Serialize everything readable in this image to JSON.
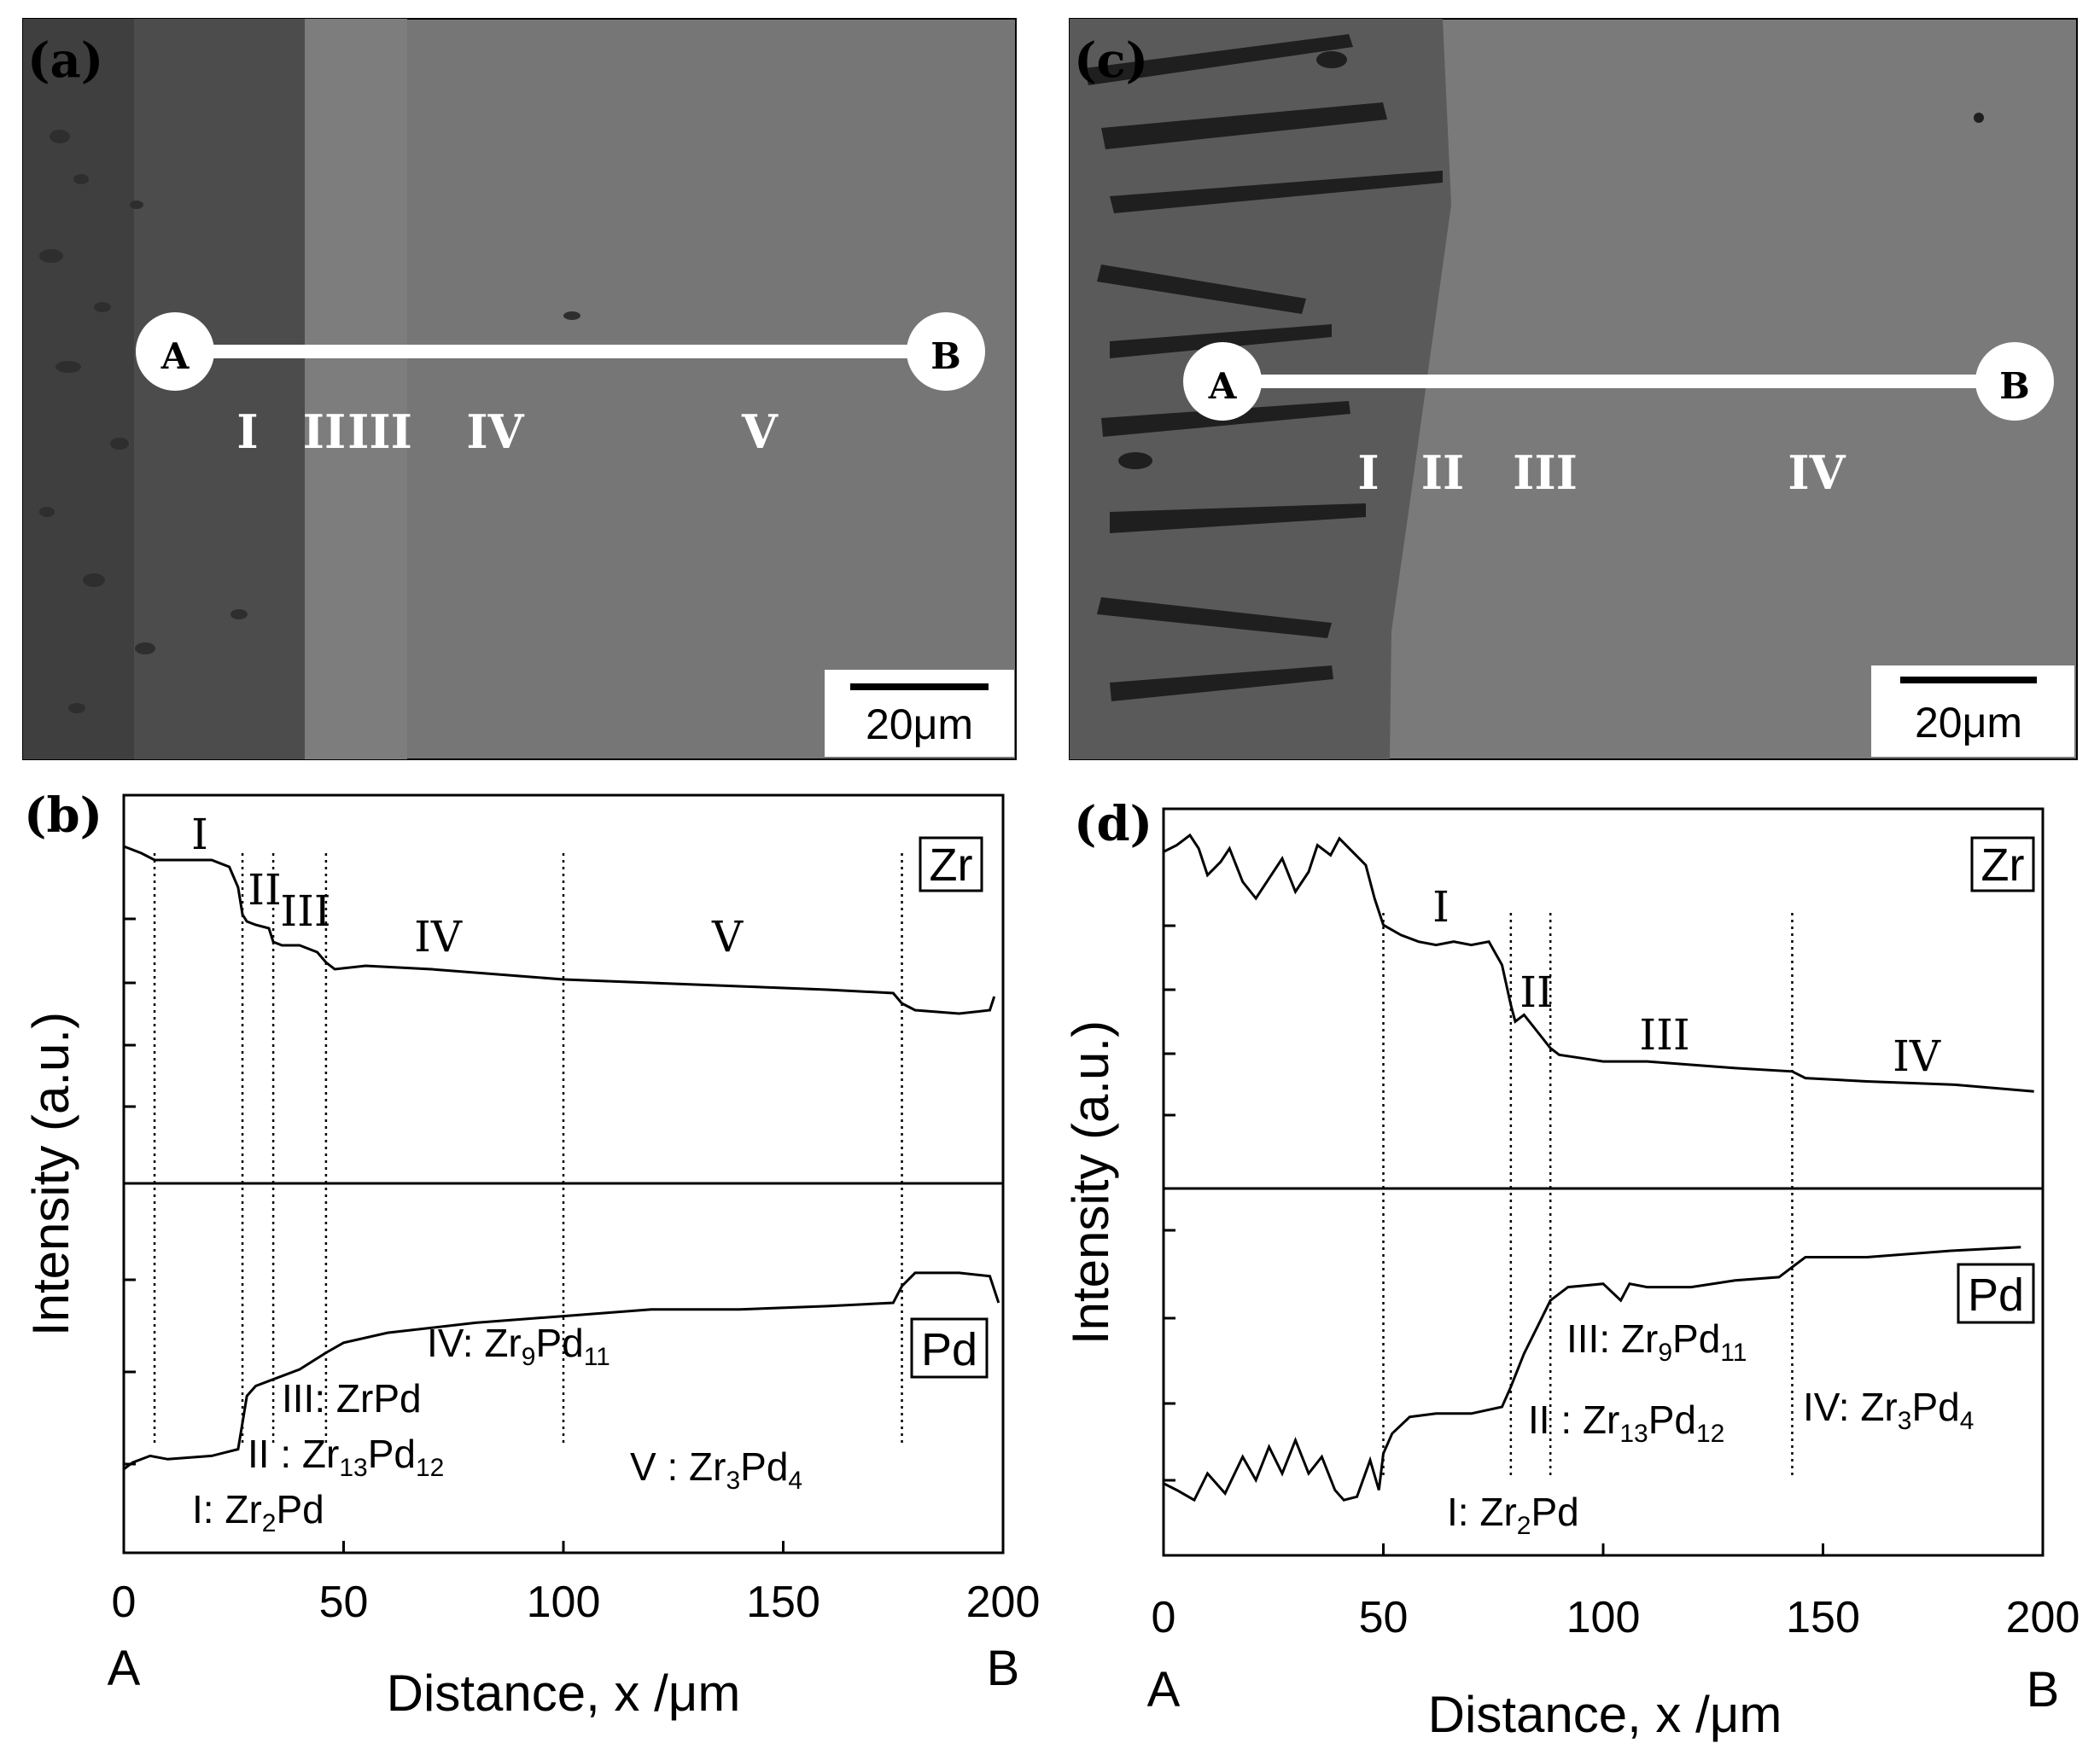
{
  "panels": {
    "a": {
      "tag": "(a)",
      "line_start": "A",
      "line_end": "B",
      "scale_bar": "20μm",
      "regions": [
        "I",
        "II",
        "III",
        "IV",
        "V"
      ]
    },
    "c": {
      "tag": "(c)",
      "line_start": "A",
      "line_end": "B",
      "scale_bar": "20μm",
      "regions": [
        "I",
        "II",
        "III",
        "IV"
      ]
    }
  },
  "colors": {
    "sem_dark": "#4a4a4a",
    "sem_mid": "#6f6f6f",
    "sem_light": "#7c7c7c",
    "line": "#000000",
    "marker": "#ffffff"
  },
  "chart_data": [
    {
      "panel": "(b)",
      "type": "line",
      "xlabel": "Distance, x /μm",
      "ylabel": "Intensity (a.u.)",
      "xlim": [
        0,
        200
      ],
      "xticks": [
        "0",
        "50",
        "100",
        "150",
        "200"
      ],
      "x_start_label": "A",
      "x_end_label": "B",
      "phase_boundaries": [
        7,
        27,
        34,
        46,
        100,
        177
      ],
      "region_labels": [
        "I",
        "II",
        "III",
        "IV",
        "V"
      ],
      "phase_legend": [
        {
          "numeral": "IV",
          "sep": ": ",
          "base": "Zr",
          "s1": "9",
          "mid": "Pd",
          "s2": "11"
        },
        {
          "numeral": "III",
          "sep": ": ",
          "base": "Zr",
          "s1": "",
          "mid": "Pd",
          "s2": ""
        },
        {
          "numeral": "II",
          "sep": " : ",
          "base": "Zr",
          "s1": "13",
          "mid": "Pd",
          "s2": "12"
        },
        {
          "numeral": "V",
          "sep": " : ",
          "base": "Zr",
          "s1": "3",
          "mid": "Pd",
          "s2": "4"
        },
        {
          "numeral": "I",
          "sep": ": ",
          "base": "Zr",
          "s1": "2",
          "mid": "Pd",
          "s2": ""
        }
      ],
      "series": [
        {
          "name": "Zr",
          "x": [
            0,
            4,
            7,
            14,
            20,
            24,
            26,
            27,
            28,
            30,
            33,
            34,
            36,
            40,
            44,
            46,
            48,
            55,
            70,
            90,
            100,
            120,
            140,
            160,
            175,
            177,
            180,
            190,
            197,
            198
          ],
          "values": [
            0.92,
            0.9,
            0.88,
            0.88,
            0.88,
            0.86,
            0.8,
            0.72,
            0.7,
            0.69,
            0.68,
            0.64,
            0.63,
            0.63,
            0.61,
            0.58,
            0.56,
            0.57,
            0.56,
            0.54,
            0.53,
            0.52,
            0.51,
            0.5,
            0.49,
            0.46,
            0.44,
            0.43,
            0.44,
            0.48
          ]
        },
        {
          "name": "Pd",
          "x": [
            0,
            2,
            6,
            10,
            20,
            26,
            27,
            28,
            30,
            34,
            40,
            46,
            50,
            60,
            80,
            100,
            120,
            140,
            160,
            175,
            177,
            180,
            190,
            197,
            199
          ],
          "values": [
            0.2,
            0.22,
            0.24,
            0.23,
            0.24,
            0.26,
            0.34,
            0.42,
            0.45,
            0.47,
            0.5,
            0.55,
            0.58,
            0.61,
            0.64,
            0.66,
            0.68,
            0.68,
            0.69,
            0.7,
            0.75,
            0.79,
            0.79,
            0.78,
            0.7
          ]
        }
      ]
    },
    {
      "panel": "(d)",
      "type": "line",
      "xlabel": "Distance, x /μm",
      "ylabel": "Intensity (a.u.)",
      "xlim": [
        0,
        200
      ],
      "xticks": [
        "0",
        "50",
        "100",
        "150",
        "200"
      ],
      "x_start_label": "A",
      "x_end_label": "B",
      "phase_boundaries": [
        50,
        79,
        88,
        143
      ],
      "region_labels": [
        "I",
        "II",
        "III",
        "IV"
      ],
      "phase_legend": [
        {
          "numeral": "III",
          "sep": ": ",
          "base": "Zr",
          "s1": "9",
          "mid": "Pd",
          "s2": "11"
        },
        {
          "numeral": "II",
          "sep": " : ",
          "base": "Zr",
          "s1": "13",
          "mid": "Pd",
          "s2": "12"
        },
        {
          "numeral": "IV",
          "sep": ": ",
          "base": "Zr",
          "s1": "3",
          "mid": "Pd",
          "s2": "4"
        },
        {
          "numeral": "I",
          "sep": ": ",
          "base": "Zr",
          "s1": "2",
          "mid": "Pd",
          "s2": ""
        }
      ],
      "series": [
        {
          "name": "Zr",
          "x": [
            0,
            3,
            6,
            8,
            10,
            13,
            15,
            18,
            21,
            24,
            27,
            30,
            33,
            35,
            38,
            40,
            43,
            46,
            48,
            50,
            54,
            58,
            62,
            66,
            70,
            74,
            77,
            79,
            80,
            82,
            85,
            88,
            90,
            95,
            100,
            110,
            120,
            130,
            143,
            146,
            160,
            180,
            198
          ],
          "values": [
            0.94,
            0.96,
            0.99,
            0.95,
            0.87,
            0.91,
            0.95,
            0.85,
            0.8,
            0.86,
            0.92,
            0.82,
            0.88,
            0.96,
            0.93,
            0.98,
            0.94,
            0.9,
            0.8,
            0.72,
            0.69,
            0.67,
            0.66,
            0.67,
            0.66,
            0.67,
            0.6,
            0.48,
            0.43,
            0.45,
            0.4,
            0.35,
            0.33,
            0.32,
            0.31,
            0.31,
            0.3,
            0.29,
            0.28,
            0.26,
            0.25,
            0.24,
            0.22
          ]
        },
        {
          "name": "Pd",
          "x": [
            0,
            3,
            7,
            10,
            14,
            18,
            21,
            24,
            27,
            30,
            33,
            36,
            39,
            41,
            44,
            47,
            49,
            50,
            52,
            56,
            62,
            70,
            77,
            79,
            82,
            85,
            88,
            92,
            100,
            104,
            106,
            110,
            120,
            130,
            140,
            143,
            146,
            160,
            180,
            195
          ],
          "values": [
            0.17,
            0.15,
            0.12,
            0.2,
            0.14,
            0.25,
            0.18,
            0.28,
            0.2,
            0.3,
            0.2,
            0.25,
            0.15,
            0.12,
            0.13,
            0.24,
            0.15,
            0.26,
            0.32,
            0.37,
            0.38,
            0.38,
            0.4,
            0.46,
            0.56,
            0.64,
            0.72,
            0.76,
            0.77,
            0.72,
            0.77,
            0.76,
            0.76,
            0.78,
            0.79,
            0.82,
            0.85,
            0.85,
            0.87,
            0.88
          ]
        }
      ]
    }
  ]
}
